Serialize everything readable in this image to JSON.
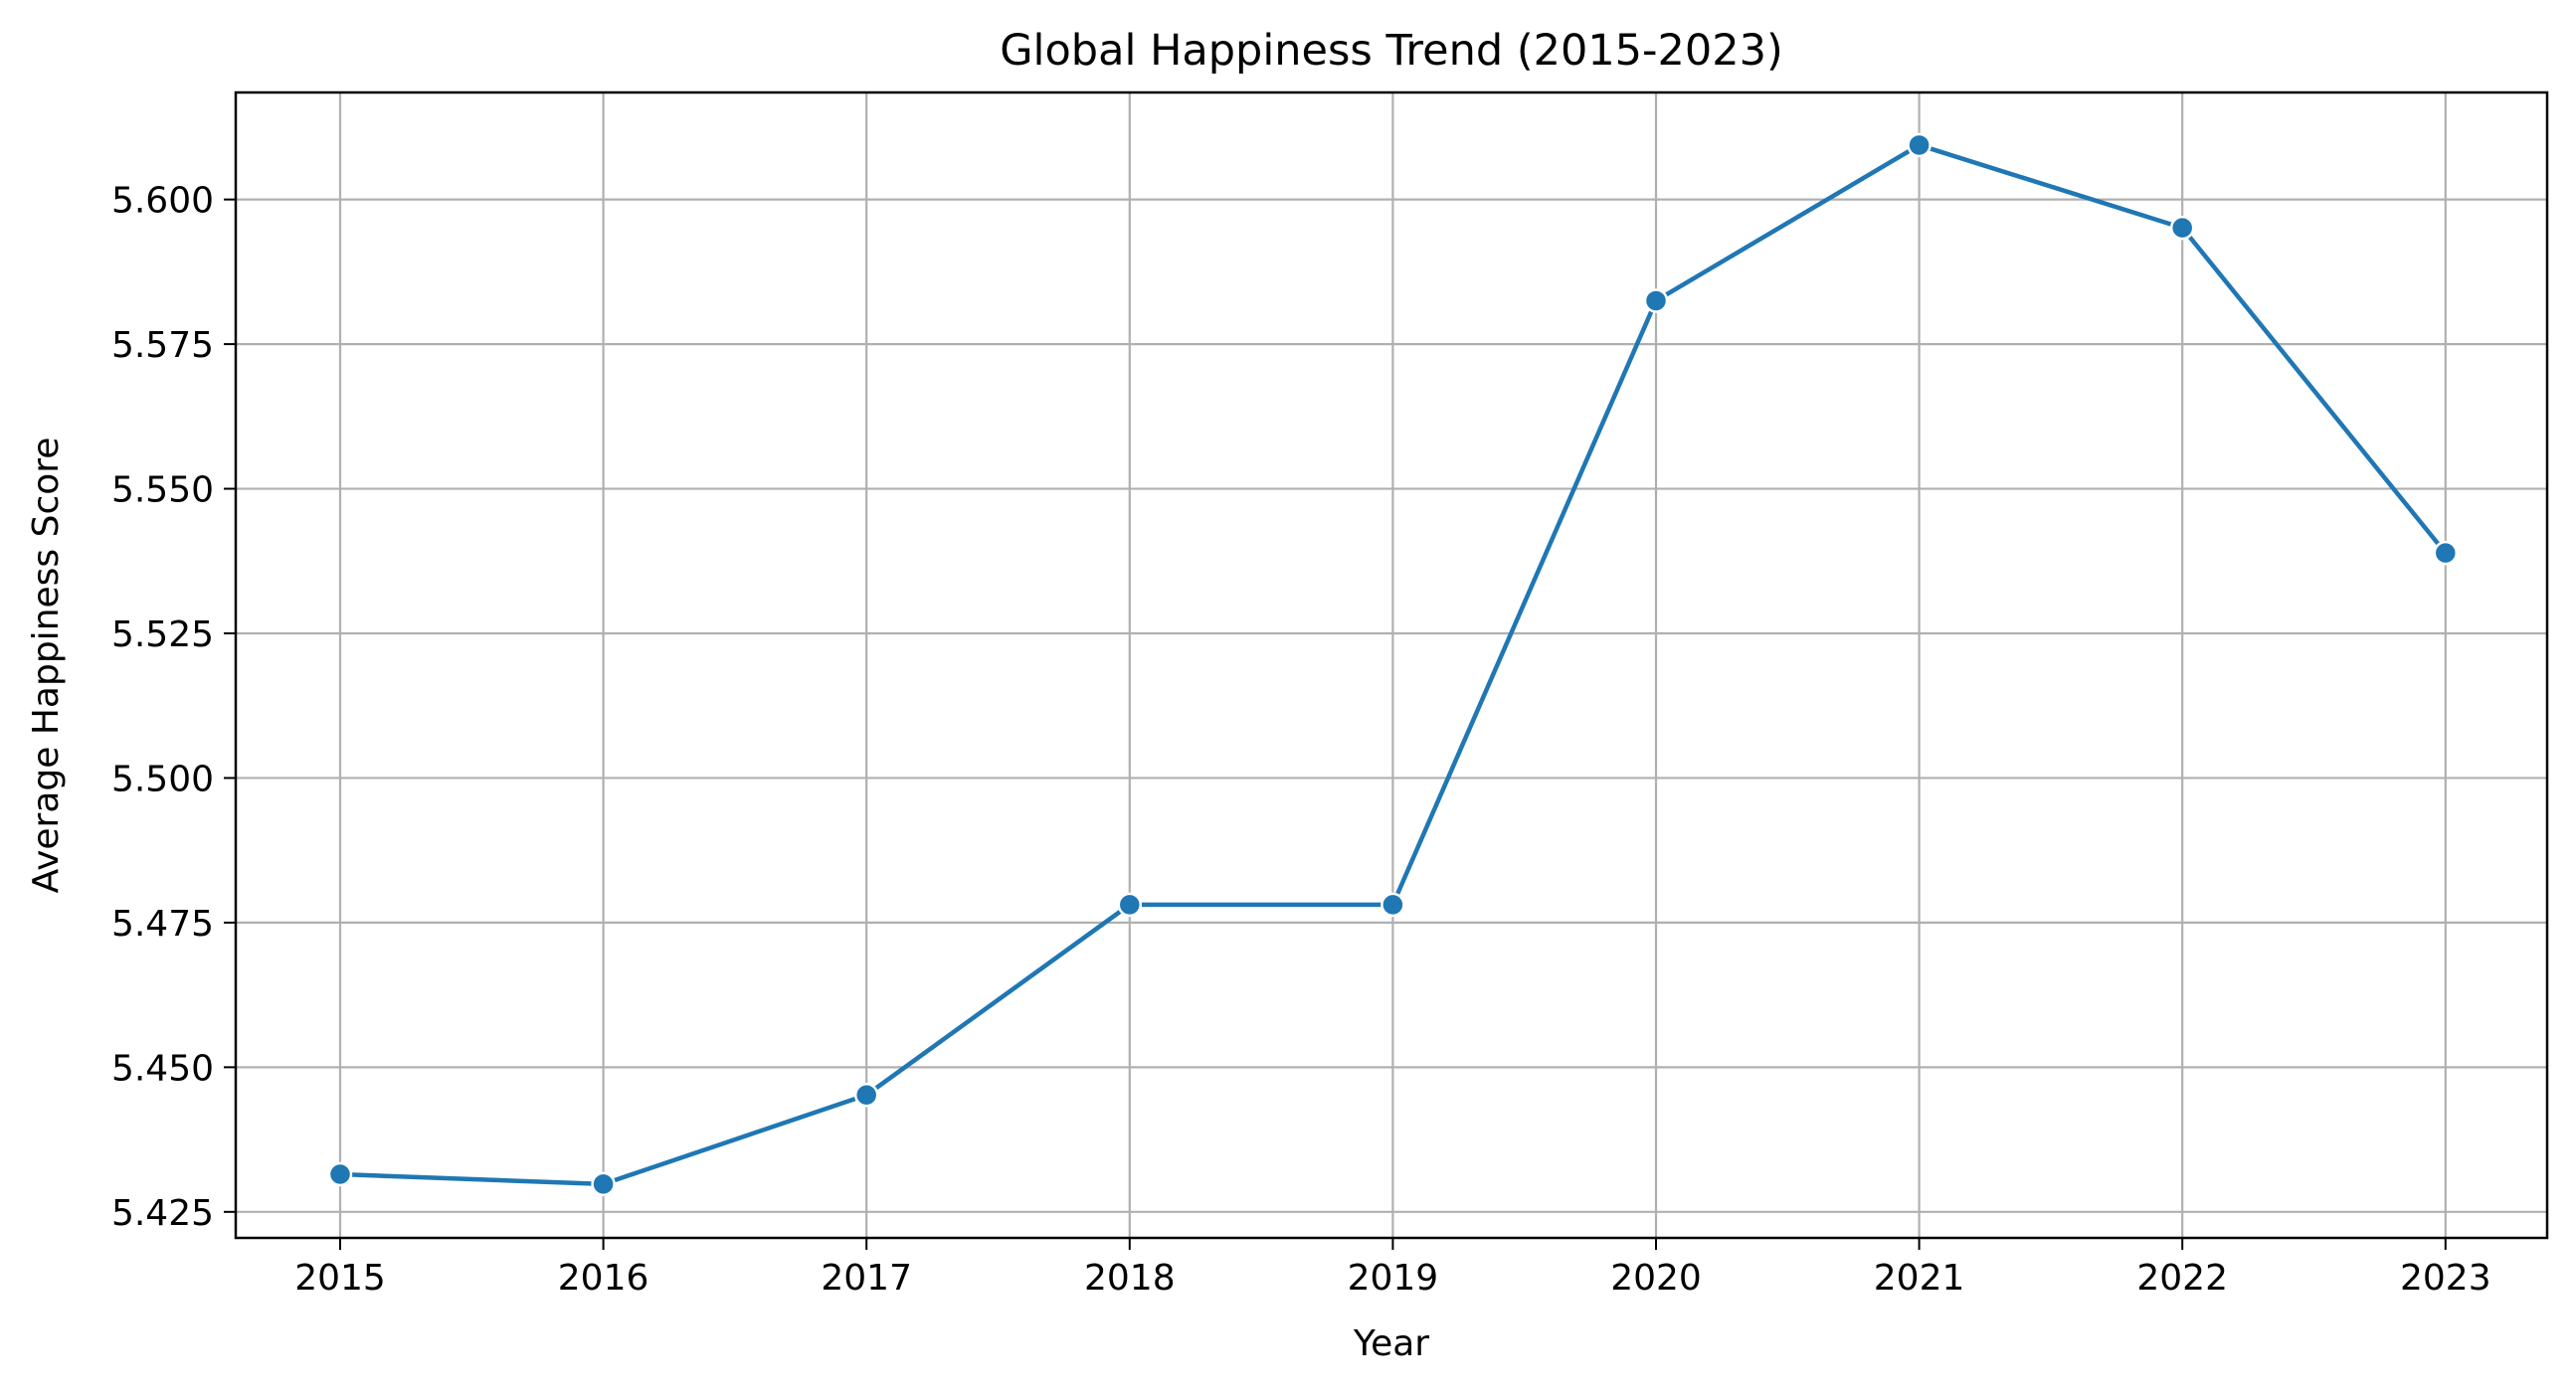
{
  "chart_data": {
    "type": "line",
    "title": "Global Happiness Trend (2015-2023)",
    "xlabel": "Year",
    "ylabel": "Average Happiness Score",
    "categories": [
      "2015",
      "2016",
      "2017",
      "2018",
      "2019",
      "2020",
      "2021",
      "2022",
      "2023"
    ],
    "series": [
      {
        "values": [
          5.4315,
          5.4298,
          5.4452,
          5.4781,
          5.4781,
          5.5825,
          5.6094,
          5.5951,
          5.5389
        ],
        "color": "#1f77b4",
        "marker": "circle"
      }
    ],
    "yticks": [
      "5.425",
      "5.450",
      "5.475",
      "5.500",
      "5.525",
      "5.550",
      "5.575",
      "5.600"
    ],
    "ylim": [
      5.4205,
      5.6185
    ],
    "grid": true,
    "legend": "none"
  }
}
